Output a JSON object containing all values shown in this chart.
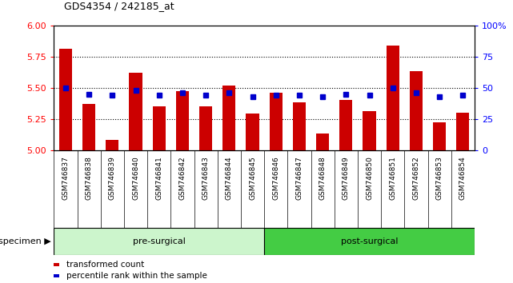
{
  "title": "GDS4354 / 242185_at",
  "specimens": [
    "GSM746837",
    "GSM746838",
    "GSM746839",
    "GSM746840",
    "GSM746841",
    "GSM746842",
    "GSM746843",
    "GSM746844",
    "GSM746845",
    "GSM746846",
    "GSM746847",
    "GSM746848",
    "GSM746849",
    "GSM746850",
    "GSM746851",
    "GSM746852",
    "GSM746853",
    "GSM746854"
  ],
  "bar_values": [
    5.81,
    5.37,
    5.08,
    5.62,
    5.35,
    5.47,
    5.35,
    5.52,
    5.29,
    5.46,
    5.38,
    5.13,
    5.4,
    5.31,
    5.84,
    5.63,
    5.22,
    5.3
  ],
  "dot_values": [
    5.5,
    5.45,
    5.44,
    5.48,
    5.44,
    5.46,
    5.44,
    5.46,
    5.43,
    5.44,
    5.44,
    5.43,
    5.45,
    5.44,
    5.5,
    5.46,
    5.43,
    5.44
  ],
  "groups": [
    {
      "name": "pre-surgical",
      "start": 0,
      "end": 9,
      "color_light": "#c8f5c8",
      "color_dark": "#55dd55"
    },
    {
      "name": "post-surgical",
      "start": 9,
      "end": 18,
      "color_light": "#55cc55",
      "color_dark": "#22aa22"
    }
  ],
  "ylim": [
    5.0,
    6.0
  ],
  "y2lim": [
    0,
    100
  ],
  "yticks": [
    5.0,
    5.25,
    5.5,
    5.75,
    6.0
  ],
  "y2ticks": [
    0,
    25,
    50,
    75,
    100
  ],
  "bar_color": "#CC0000",
  "dot_color": "#0000CC",
  "background_color": "#FFFFFF",
  "bar_baseline": 5.0,
  "grid_lines": [
    5.25,
    5.5,
    5.75
  ],
  "pre_group_color": "#ccf5cc",
  "post_group_color": "#44cc44",
  "specimen_bg_color": "#cccccc",
  "legend_items": [
    {
      "label": "transformed count",
      "color": "#CC0000"
    },
    {
      "label": "percentile rank within the sample",
      "color": "#0000CC"
    }
  ]
}
